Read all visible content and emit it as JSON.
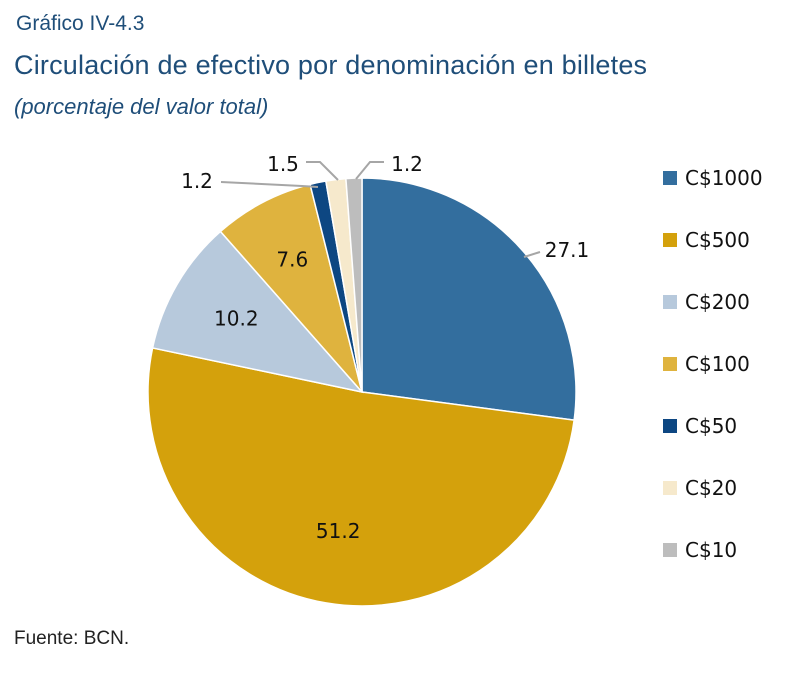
{
  "header": {
    "kicker": "Gráfico IV-4.3",
    "title": "Circulación de efectivo por denominación en billetes",
    "subtitle": "(porcentaje del valor total)"
  },
  "footer": {
    "source": "Fuente: BCN."
  },
  "chart_data": {
    "type": "pie",
    "title": "Circulación de efectivo por denominación en billetes",
    "subtitle": "(porcentaje del valor total)",
    "legend_position": "right",
    "slices": [
      {
        "label": "C$1000",
        "value": 27.1,
        "display": "27.1",
        "color": "#336e9e"
      },
      {
        "label": "C$500",
        "value": 51.2,
        "display": "51.2",
        "color": "#d4a10c"
      },
      {
        "label": "C$200",
        "value": 10.2,
        "display": "10.2",
        "color": "#b7c9dc"
      },
      {
        "label": "C$100",
        "value": 7.6,
        "display": "7.6",
        "color": "#dfb33e"
      },
      {
        "label": "C$50",
        "value": 1.2,
        "display": "1.2",
        "color": "#0d4782"
      },
      {
        "label": "C$20",
        "value": 1.5,
        "display": "1.5",
        "color": "#f6e9cc"
      },
      {
        "label": "C$10",
        "value": 1.2,
        "display": "1.2",
        "color": "#bdbdbd"
      }
    ]
  }
}
